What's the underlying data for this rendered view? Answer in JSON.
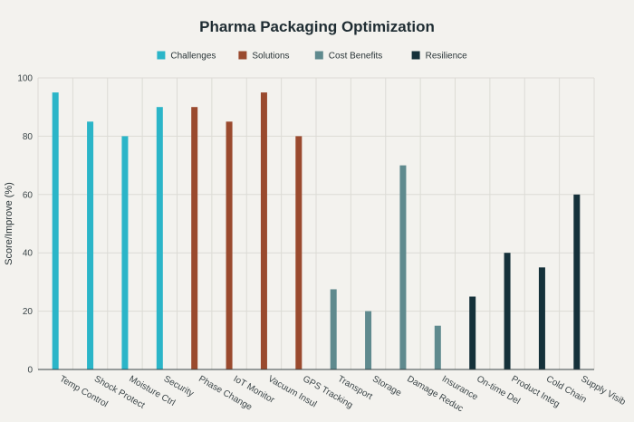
{
  "chart_data": {
    "type": "bar",
    "title": "Pharma Packaging Optimization",
    "xlabel": "",
    "ylabel": "Score/Improve (%)",
    "ylim": [
      0,
      100
    ],
    "yticks": [
      0,
      20,
      40,
      60,
      80,
      100
    ],
    "grid": true,
    "legend_position": "top-center",
    "categories": [
      "Temp Control",
      "Shock Protect",
      "Moisture Ctrl",
      "Security",
      "Phase Change",
      "IoT Monitor",
      "Vacuum Insul",
      "GPS Tracking",
      "Transport",
      "Storage",
      "Damage Reduc",
      "Insurance",
      "On-time Del",
      "Product Integ",
      "Cold Chain",
      "Supply Visib"
    ],
    "series": [
      {
        "name": "Challenges",
        "color": "#2bb5c8",
        "values": [
          95,
          85,
          80,
          90,
          null,
          null,
          null,
          null,
          null,
          null,
          null,
          null,
          null,
          null,
          null,
          null
        ]
      },
      {
        "name": "Solutions",
        "color": "#9a4a2e",
        "values": [
          null,
          null,
          null,
          null,
          90,
          85,
          95,
          80,
          null,
          null,
          null,
          null,
          null,
          null,
          null,
          null
        ]
      },
      {
        "name": "Cost Benefits",
        "color": "#5f8a8e",
        "values": [
          null,
          null,
          null,
          null,
          null,
          null,
          null,
          null,
          27.5,
          20,
          70,
          15,
          null,
          null,
          null,
          null
        ]
      },
      {
        "name": "Resilience",
        "color": "#15313a",
        "values": [
          null,
          null,
          null,
          null,
          null,
          null,
          null,
          null,
          null,
          null,
          null,
          null,
          25,
          40,
          35,
          60
        ]
      }
    ]
  }
}
